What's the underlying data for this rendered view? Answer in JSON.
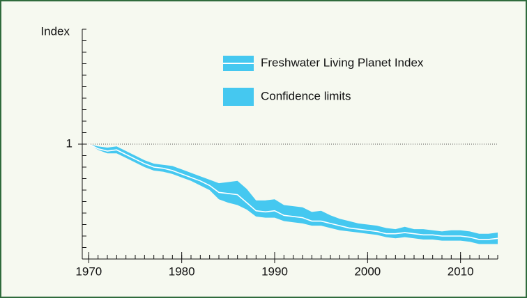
{
  "chart_data": {
    "type": "line-band",
    "y_label": "Index",
    "x": [
      1970,
      1971,
      1972,
      1973,
      1974,
      1975,
      1976,
      1977,
      1978,
      1979,
      1980,
      1981,
      1982,
      1983,
      1984,
      1985,
      1986,
      1987,
      1988,
      1989,
      1990,
      1991,
      1992,
      1993,
      1994,
      1995,
      1996,
      1997,
      1998,
      1999,
      2000,
      2001,
      2002,
      2003,
      2004,
      2005,
      2006,
      2007,
      2008,
      2009,
      2010,
      2011,
      2012,
      2013,
      2014
    ],
    "series": [
      {
        "name": "Freshwater Living Planet Index",
        "color": "#ffffff",
        "values": [
          1.0,
          0.96,
          0.94,
          0.95,
          0.91,
          0.87,
          0.83,
          0.8,
          0.79,
          0.77,
          0.74,
          0.71,
          0.68,
          0.64,
          0.58,
          0.57,
          0.56,
          0.49,
          0.42,
          0.41,
          0.42,
          0.38,
          0.37,
          0.36,
          0.33,
          0.33,
          0.31,
          0.29,
          0.27,
          0.26,
          0.25,
          0.24,
          0.22,
          0.22,
          0.23,
          0.22,
          0.21,
          0.21,
          0.2,
          0.2,
          0.2,
          0.19,
          0.17,
          0.17,
          0.18
        ]
      },
      {
        "name": "Confidence limits",
        "color": "#45c8f0",
        "upper": [
          1.0,
          0.98,
          0.97,
          0.98,
          0.94,
          0.9,
          0.86,
          0.83,
          0.82,
          0.81,
          0.78,
          0.75,
          0.72,
          0.69,
          0.66,
          0.67,
          0.68,
          0.61,
          0.51,
          0.51,
          0.52,
          0.47,
          0.46,
          0.45,
          0.41,
          0.42,
          0.38,
          0.35,
          0.33,
          0.31,
          0.3,
          0.29,
          0.27,
          0.26,
          0.28,
          0.26,
          0.26,
          0.25,
          0.24,
          0.25,
          0.25,
          0.24,
          0.22,
          0.22,
          0.23
        ],
        "lower": [
          1.0,
          0.95,
          0.92,
          0.92,
          0.88,
          0.84,
          0.8,
          0.77,
          0.76,
          0.74,
          0.71,
          0.68,
          0.64,
          0.6,
          0.52,
          0.49,
          0.47,
          0.43,
          0.37,
          0.36,
          0.36,
          0.33,
          0.32,
          0.31,
          0.29,
          0.29,
          0.27,
          0.25,
          0.24,
          0.23,
          0.22,
          0.21,
          0.19,
          0.18,
          0.19,
          0.18,
          0.17,
          0.17,
          0.16,
          0.16,
          0.16,
          0.15,
          0.13,
          0.13,
          0.13
        ]
      }
    ],
    "xlim": [
      1969.3,
      2014
    ],
    "xticks": [
      1970,
      1980,
      1990,
      2000,
      2010
    ],
    "ylim": [
      0,
      2
    ],
    "yticks": [
      1
    ],
    "yminor": [
      0,
      0.1,
      0.2,
      0.3,
      0.4,
      0.5,
      0.6,
      0.7,
      0.8,
      0.9,
      1,
      1.1,
      1.2,
      1.3,
      1.4,
      1.5,
      1.6,
      1.7,
      1.8,
      1.9,
      2
    ],
    "reference_line": 1
  }
}
